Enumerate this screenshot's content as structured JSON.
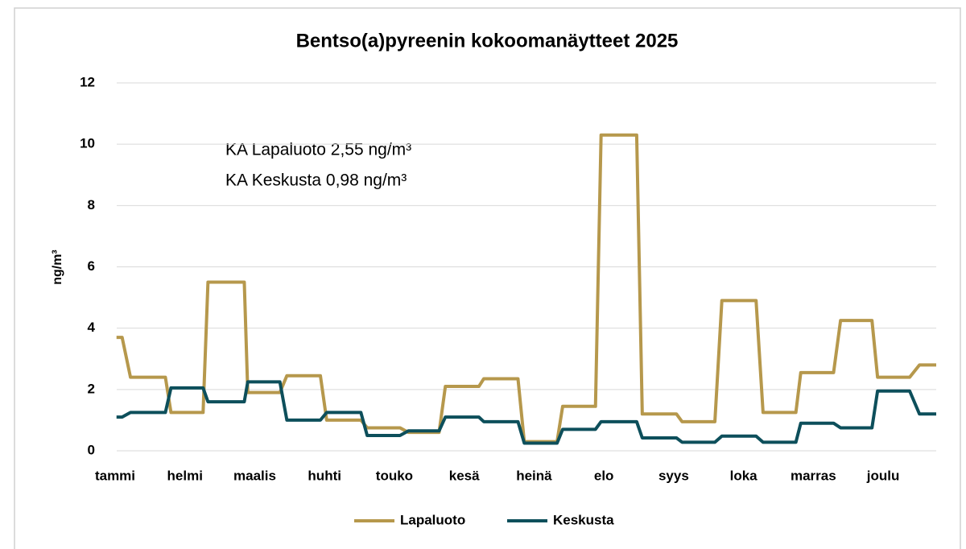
{
  "chart_data": {
    "type": "line",
    "title": "Bentso(a)pyreenin kokoomanäytteet 2025",
    "ylabel": "ng/m³",
    "annotations": [
      "KA Lapaluoto 2,55 ng/m³",
      "KA Keskusta 0,98 ng/m³"
    ],
    "x": [
      0.02,
      0.1,
      0.22,
      0.72,
      0.8,
      1.26,
      1.33,
      1.85,
      1.9,
      2.36,
      2.46,
      2.94,
      3.03,
      3.52,
      3.61,
      4.08,
      4.2,
      4.64,
      4.73,
      5.21,
      5.28,
      5.77,
      5.86,
      6.33,
      6.41,
      6.88,
      6.96,
      7.47,
      7.55,
      8.04,
      8.12,
      8.59,
      8.69,
      9.18,
      9.28,
      9.75,
      9.82,
      10.29,
      10.39,
      10.84,
      10.92,
      11.38,
      11.52,
      11.76
    ],
    "series": [
      {
        "name": "Lapaluoto",
        "color": "#b6984c",
        "values": [
          3.7,
          3.7,
          2.4,
          2.4,
          1.25,
          1.25,
          5.5,
          5.5,
          1.9,
          1.9,
          2.45,
          2.45,
          1.0,
          1.0,
          0.75,
          0.75,
          0.6,
          0.6,
          2.1,
          2.1,
          2.35,
          2.35,
          0.3,
          0.3,
          1.45,
          1.45,
          10.3,
          10.3,
          1.2,
          1.2,
          0.95,
          0.95,
          4.9,
          4.9,
          1.25,
          1.25,
          2.55,
          2.55,
          4.25,
          4.25,
          2.4,
          2.4,
          2.8,
          2.8
        ]
      },
      {
        "name": "Keskusta",
        "color": "#0d4f5b",
        "values": [
          1.1,
          1.1,
          1.25,
          1.25,
          2.05,
          2.05,
          1.6,
          1.6,
          2.25,
          2.25,
          1.0,
          1.0,
          1.25,
          1.25,
          0.5,
          0.5,
          0.65,
          0.65,
          1.1,
          1.1,
          0.95,
          0.95,
          0.25,
          0.25,
          0.7,
          0.7,
          0.95,
          0.95,
          0.42,
          0.42,
          0.28,
          0.28,
          0.48,
          0.48,
          0.28,
          0.28,
          0.9,
          0.9,
          0.75,
          0.75,
          1.95,
          1.95,
          1.2,
          1.2
        ]
      }
    ],
    "xlim": [
      0,
      11.76
    ],
    "xticks": [
      {
        "value": 0,
        "label": "tammi"
      },
      {
        "value": 1,
        "label": "helmi"
      },
      {
        "value": 2,
        "label": "maalis"
      },
      {
        "value": 3,
        "label": "huhti"
      },
      {
        "value": 4,
        "label": "touko"
      },
      {
        "value": 5,
        "label": "kesä"
      },
      {
        "value": 6,
        "label": "heinä"
      },
      {
        "value": 7,
        "label": "elo"
      },
      {
        "value": 8,
        "label": "syys"
      },
      {
        "value": 9,
        "label": "loka"
      },
      {
        "value": 10,
        "label": "marras"
      },
      {
        "value": 11,
        "label": "joulu"
      }
    ],
    "ylim": [
      0,
      12
    ],
    "yticks": [
      0,
      2,
      4,
      6,
      8,
      10,
      12
    ],
    "grid": true,
    "legend": "bottom"
  }
}
